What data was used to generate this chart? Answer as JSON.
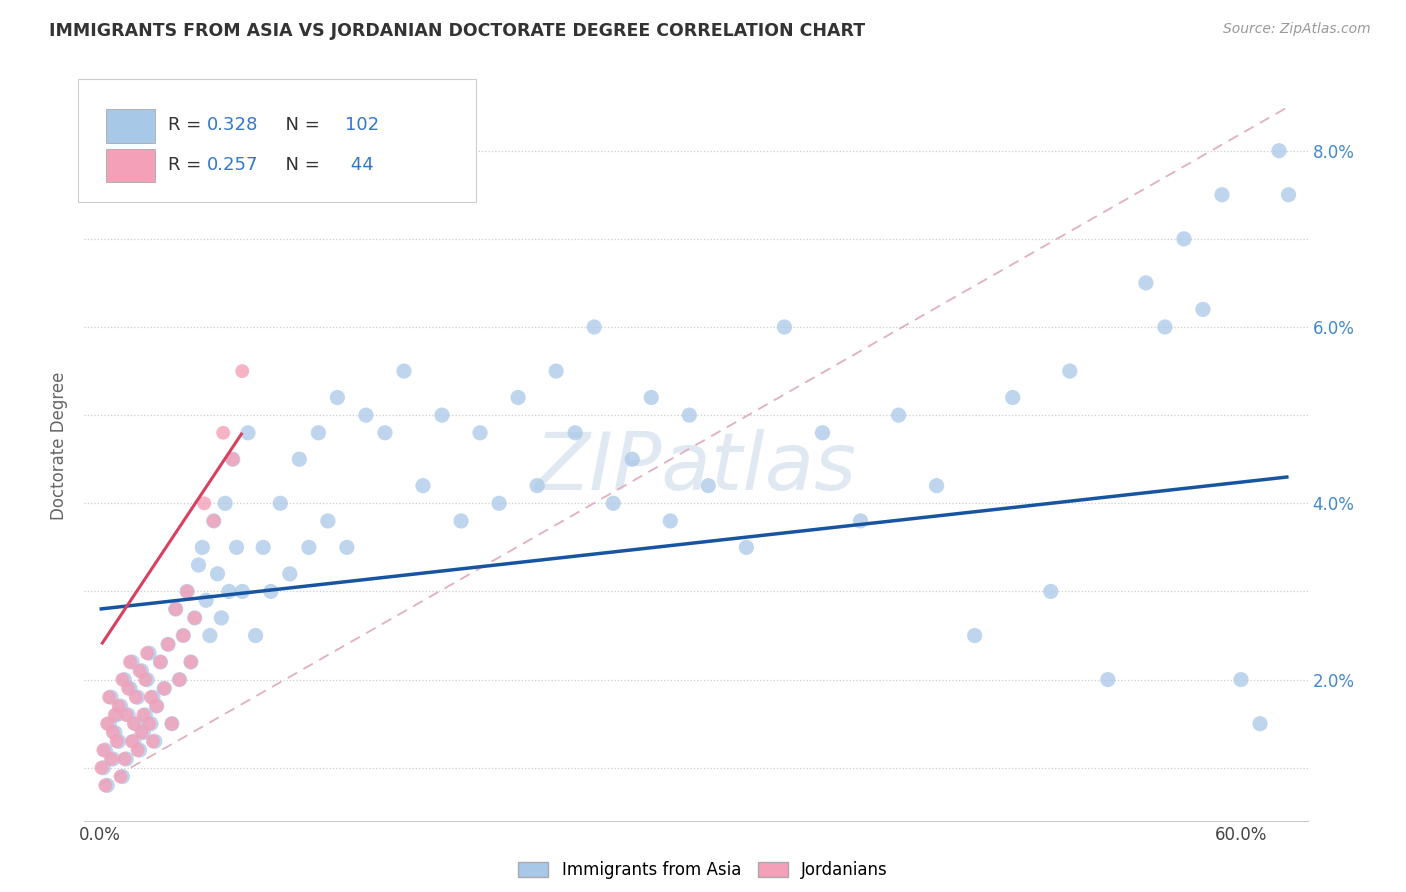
{
  "title": "IMMIGRANTS FROM ASIA VS JORDANIAN DOCTORATE DEGREE CORRELATION CHART",
  "source": "Source: ZipAtlas.com",
  "ylabel": "Doctorate Degree",
  "xlim": [
    -0.008,
    0.635
  ],
  "ylim": [
    0.004,
    0.089
  ],
  "x_ticks": [
    0.0,
    0.1,
    0.2,
    0.3,
    0.4,
    0.5,
    0.6
  ],
  "x_tick_labels": [
    "0.0%",
    "",
    "",
    "",
    "",
    "",
    "60.0%"
  ],
  "y_ticks": [
    0.01,
    0.02,
    0.03,
    0.04,
    0.05,
    0.06,
    0.07,
    0.08
  ],
  "y_tick_labels_right": [
    "",
    "2.0%",
    "",
    "4.0%",
    "",
    "6.0%",
    "",
    "8.0%"
  ],
  "legend_labels": [
    "Immigrants from Asia",
    "Jordanians"
  ],
  "legend_r": [
    "0.328",
    "0.257"
  ],
  "legend_n": [
    "102",
    "44"
  ],
  "color_asia": "#a8c8e8",
  "color_jordan": "#f4a0b8",
  "color_asia_line": "#1855a0",
  "color_jordan_line": "#d84060",
  "color_diag_line": "#e0b0c0",
  "watermark": "ZIPatlas",
  "asia_x": [
    0.002,
    0.003,
    0.004,
    0.005,
    0.006,
    0.007,
    0.008,
    0.009,
    0.01,
    0.011,
    0.012,
    0.013,
    0.014,
    0.015,
    0.016,
    0.017,
    0.018,
    0.019,
    0.02,
    0.021,
    0.022,
    0.023,
    0.024,
    0.025,
    0.026,
    0.027,
    0.028,
    0.029,
    0.03,
    0.032,
    0.034,
    0.036,
    0.038,
    0.04,
    0.042,
    0.044,
    0.046,
    0.048,
    0.05,
    0.052,
    0.054,
    0.056,
    0.058,
    0.06,
    0.062,
    0.064,
    0.066,
    0.068,
    0.07,
    0.072,
    0.075,
    0.078,
    0.082,
    0.086,
    0.09,
    0.095,
    0.1,
    0.105,
    0.11,
    0.115,
    0.12,
    0.125,
    0.13,
    0.14,
    0.15,
    0.16,
    0.17,
    0.18,
    0.19,
    0.2,
    0.21,
    0.22,
    0.23,
    0.24,
    0.25,
    0.26,
    0.27,
    0.28,
    0.29,
    0.3,
    0.31,
    0.32,
    0.34,
    0.36,
    0.38,
    0.4,
    0.42,
    0.44,
    0.46,
    0.48,
    0.5,
    0.51,
    0.53,
    0.55,
    0.56,
    0.57,
    0.58,
    0.59,
    0.6,
    0.61,
    0.62,
    0.625
  ],
  "asia_y": [
    0.01,
    0.012,
    0.008,
    0.015,
    0.018,
    0.011,
    0.014,
    0.016,
    0.013,
    0.017,
    0.009,
    0.02,
    0.011,
    0.016,
    0.019,
    0.022,
    0.013,
    0.015,
    0.018,
    0.012,
    0.021,
    0.014,
    0.016,
    0.02,
    0.023,
    0.015,
    0.018,
    0.013,
    0.017,
    0.022,
    0.019,
    0.024,
    0.015,
    0.028,
    0.02,
    0.025,
    0.03,
    0.022,
    0.027,
    0.033,
    0.035,
    0.029,
    0.025,
    0.038,
    0.032,
    0.027,
    0.04,
    0.03,
    0.045,
    0.035,
    0.03,
    0.048,
    0.025,
    0.035,
    0.03,
    0.04,
    0.032,
    0.045,
    0.035,
    0.048,
    0.038,
    0.052,
    0.035,
    0.05,
    0.048,
    0.055,
    0.042,
    0.05,
    0.038,
    0.048,
    0.04,
    0.052,
    0.042,
    0.055,
    0.048,
    0.06,
    0.04,
    0.045,
    0.052,
    0.038,
    0.05,
    0.042,
    0.035,
    0.06,
    0.048,
    0.038,
    0.05,
    0.042,
    0.025,
    0.052,
    0.03,
    0.055,
    0.02,
    0.065,
    0.06,
    0.07,
    0.062,
    0.075,
    0.02,
    0.015,
    0.08,
    0.075
  ],
  "jordan_x": [
    0.001,
    0.002,
    0.003,
    0.004,
    0.005,
    0.006,
    0.007,
    0.008,
    0.009,
    0.01,
    0.011,
    0.012,
    0.013,
    0.014,
    0.015,
    0.016,
    0.017,
    0.018,
    0.019,
    0.02,
    0.021,
    0.022,
    0.023,
    0.024,
    0.025,
    0.026,
    0.027,
    0.028,
    0.03,
    0.032,
    0.034,
    0.036,
    0.038,
    0.04,
    0.042,
    0.044,
    0.046,
    0.048,
    0.05,
    0.055,
    0.06,
    0.065,
    0.07,
    0.075
  ],
  "jordan_y": [
    0.01,
    0.012,
    0.008,
    0.015,
    0.018,
    0.011,
    0.014,
    0.016,
    0.013,
    0.017,
    0.009,
    0.02,
    0.011,
    0.016,
    0.019,
    0.022,
    0.013,
    0.015,
    0.018,
    0.012,
    0.021,
    0.014,
    0.016,
    0.02,
    0.023,
    0.015,
    0.018,
    0.013,
    0.017,
    0.022,
    0.019,
    0.024,
    0.015,
    0.028,
    0.02,
    0.025,
    0.03,
    0.022,
    0.027,
    0.04,
    0.038,
    0.048,
    0.045,
    0.055
  ],
  "asia_line_x0": 0.0,
  "asia_line_x1": 0.625,
  "asia_line_y0": 0.028,
  "asia_line_y1": 0.043,
  "jordan_line_x0": 0.001,
  "jordan_line_x1": 0.075,
  "jordan_line_y0": 0.024,
  "jordan_line_y1": 0.048,
  "diag_line_x0": 0.0,
  "diag_line_x1": 0.625,
  "diag_line_y0": 0.008,
  "diag_line_y1": 0.085
}
